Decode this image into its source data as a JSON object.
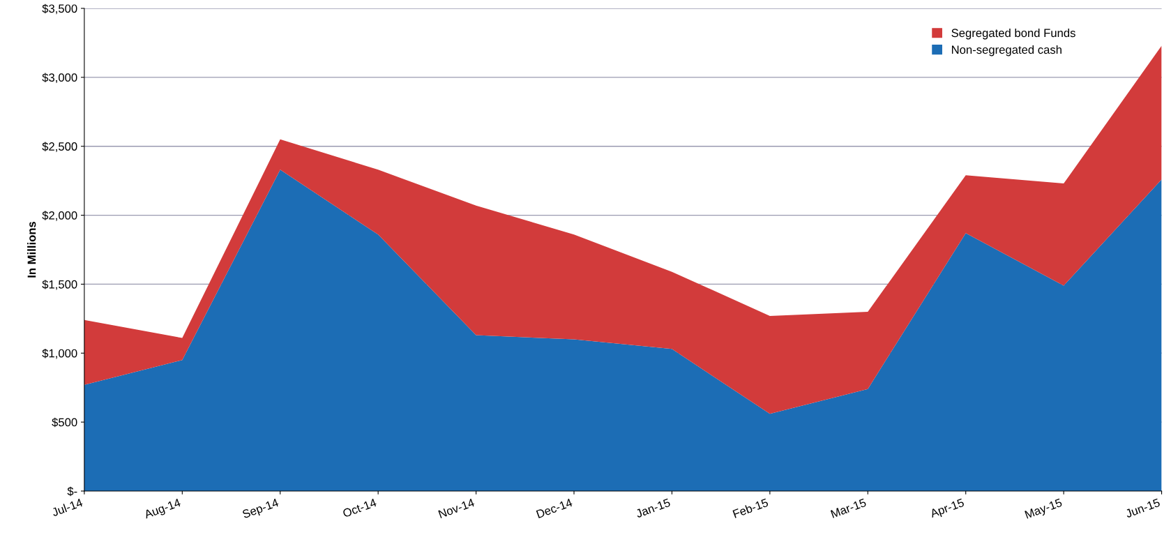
{
  "chart_data": {
    "type": "area",
    "stacked": true,
    "ylabel": "In Millions",
    "categories": [
      "Jul-14",
      "Aug-14",
      "Sep-14",
      "Oct-14",
      "Nov-14",
      "Dec-14",
      "Jan-15",
      "Feb-15",
      "Mar-15",
      "Apr-15",
      "May-15",
      "Jun-15"
    ],
    "series": [
      {
        "name": "Non-segregated cash",
        "color": "#1c6db5",
        "values": [
          770,
          950,
          2330,
          1860,
          1130,
          1100,
          1030,
          560,
          740,
          1870,
          1490,
          2260
        ]
      },
      {
        "name": "Segregated bond Funds",
        "color": "#d23b3b",
        "values": [
          470,
          160,
          220,
          470,
          940,
          760,
          560,
          710,
          560,
          420,
          740,
          970
        ]
      }
    ],
    "ylim": [
      0,
      3500
    ],
    "yticks": [
      {
        "value": 0,
        "label": "$-"
      },
      {
        "value": 500,
        "label": "$500"
      },
      {
        "value": 1000,
        "label": "$1,000"
      },
      {
        "value": 1500,
        "label": "$1,500"
      },
      {
        "value": 2000,
        "label": "$2,000"
      },
      {
        "value": 2500,
        "label": "$2,500"
      },
      {
        "value": 3000,
        "label": "$3,000"
      },
      {
        "value": 3500,
        "label": "$3,500"
      }
    ],
    "grid": "y",
    "legend": "top right"
  }
}
